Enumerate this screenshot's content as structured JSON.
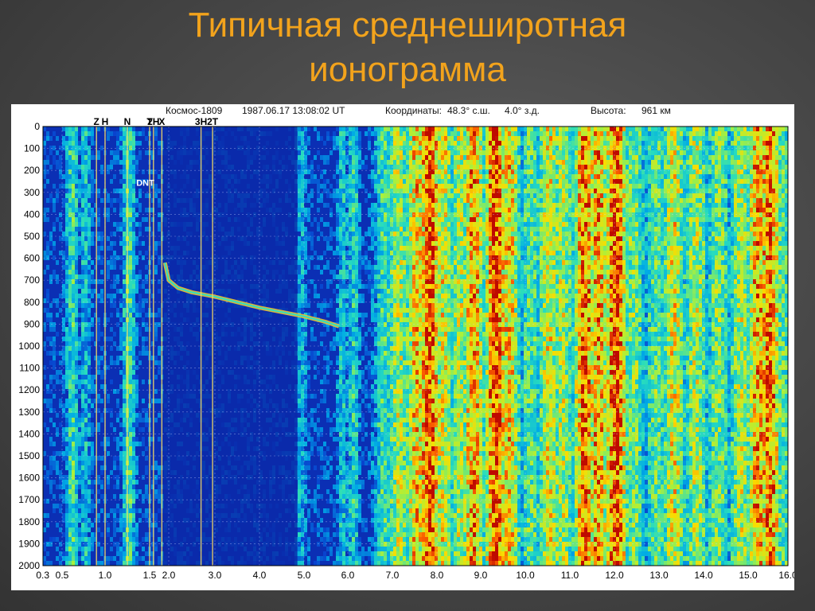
{
  "slide": {
    "title_line1": "Типичная среднеширотная",
    "title_line2": "ионограмма"
  },
  "header": {
    "satellite": "Космос-1809",
    "datetime": "1987.06.17 13:08:02 UT",
    "coords_label": "Координаты:",
    "lat": "48.3° с.ш.",
    "lon": "4.0° з.д.",
    "alt_label": "Высота:",
    "alt_value": "961 км"
  },
  "chart_data": {
    "type": "heatmap",
    "title": "",
    "xlabel": "",
    "ylabel": "",
    "x_ticks": [
      {
        "value": 0.3,
        "label": "0.3"
      },
      {
        "value": 0.5,
        "label": "0.5"
      },
      {
        "value": 1.0,
        "label": "1.0"
      },
      {
        "value": 1.5,
        "label": "1.5"
      },
      {
        "value": 2.0,
        "label": "2.0"
      },
      {
        "value": 3.0,
        "label": "3.0"
      },
      {
        "value": 4.0,
        "label": "4.0"
      },
      {
        "value": 5.0,
        "label": "5.0"
      },
      {
        "value": 6.0,
        "label": "6.0"
      },
      {
        "value": 7.0,
        "label": "7.0"
      },
      {
        "value": 8.0,
        "label": "8.0"
      },
      {
        "value": 9.0,
        "label": "9.0"
      },
      {
        "value": 10.0,
        "label": "10.0"
      },
      {
        "value": 11.0,
        "label": "11.0"
      },
      {
        "value": 12.0,
        "label": "12.0"
      },
      {
        "value": 13.0,
        "label": "13.0"
      },
      {
        "value": 14.0,
        "label": "14.0"
      },
      {
        "value": 15.0,
        "label": "15.0"
      },
      {
        "value": 16.0,
        "label": "16.0"
      }
    ],
    "y_ticks": [
      0,
      100,
      200,
      300,
      400,
      500,
      600,
      700,
      800,
      900,
      1000,
      1100,
      1200,
      1300,
      1400,
      1500,
      1600,
      1700,
      1800,
      1900,
      2000
    ],
    "ylim": [
      0,
      2000
    ],
    "y_reversed": true,
    "resonance_marks": [
      {
        "label": "Z",
        "x": 0.9
      },
      {
        "label": "H",
        "x": 1.0
      },
      {
        "label": "N",
        "x": 1.25
      },
      {
        "label": "T",
        "x": 1.5
      },
      {
        "label": "2H",
        "x": 1.6
      },
      {
        "label": "X",
        "x": 1.82
      },
      {
        "label": "3H",
        "x": 2.7
      },
      {
        "label": "2T",
        "x": 2.95
      }
    ],
    "annotations": [
      {
        "text": "DNT",
        "x": 1.35,
        "y": 270
      }
    ],
    "trace_x": [
      1.9,
      2.0,
      2.2,
      2.5,
      3.0,
      3.5,
      4.0,
      4.5,
      5.0,
      5.5,
      5.8
    ],
    "trace_y": [
      620,
      700,
      735,
      755,
      775,
      800,
      825,
      845,
      865,
      890,
      910
    ],
    "intensity_bands": [
      {
        "x": 0.6,
        "level": 0.55
      },
      {
        "x": 0.75,
        "level": 0.45
      },
      {
        "x": 1.25,
        "level": 0.55
      },
      {
        "x": 4.9,
        "level": 0.4
      },
      {
        "x": 5.85,
        "level": 0.45
      },
      {
        "x": 6.1,
        "level": 0.5
      },
      {
        "x": 6.8,
        "level": 0.55
      },
      {
        "x": 7.1,
        "level": 0.7
      },
      {
        "x": 7.5,
        "level": 0.8
      },
      {
        "x": 7.8,
        "level": 0.95
      },
      {
        "x": 8.1,
        "level": 0.75
      },
      {
        "x": 8.5,
        "level": 0.7
      },
      {
        "x": 8.8,
        "level": 0.85
      },
      {
        "x": 9.3,
        "level": 0.95
      },
      {
        "x": 9.6,
        "level": 0.8
      },
      {
        "x": 10.1,
        "level": 0.6
      },
      {
        "x": 10.5,
        "level": 0.75
      },
      {
        "x": 10.8,
        "level": 0.7
      },
      {
        "x": 11.3,
        "level": 0.9
      },
      {
        "x": 11.6,
        "level": 0.85
      },
      {
        "x": 12.0,
        "level": 0.95
      },
      {
        "x": 12.4,
        "level": 0.65
      },
      {
        "x": 12.9,
        "level": 0.6
      },
      {
        "x": 13.3,
        "level": 0.75
      },
      {
        "x": 13.8,
        "level": 0.7
      },
      {
        "x": 14.3,
        "level": 0.65
      },
      {
        "x": 14.8,
        "level": 0.7
      },
      {
        "x": 15.2,
        "level": 0.85
      },
      {
        "x": 15.5,
        "level": 0.9
      },
      {
        "x": 15.8,
        "level": 0.6
      }
    ]
  }
}
